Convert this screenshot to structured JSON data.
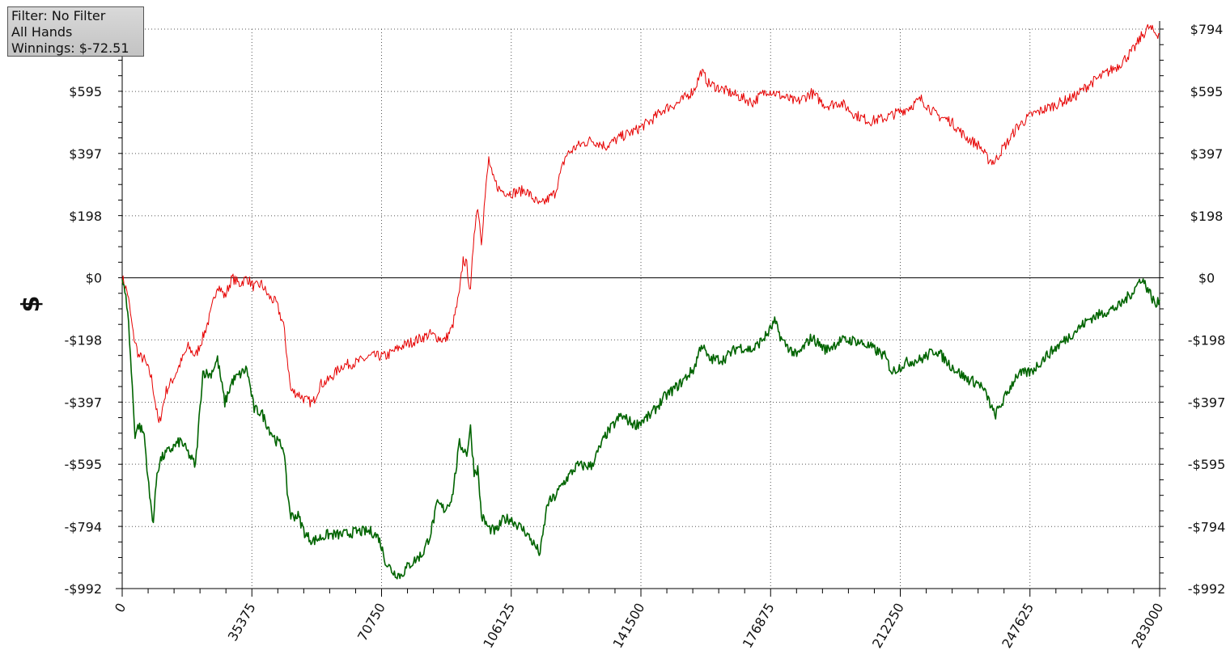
{
  "info_box": {
    "filter": "Filter: No Filter",
    "hands": "All Hands",
    "winnings": "Winnings: $-72.51"
  },
  "chart_data": {
    "type": "line",
    "title": "",
    "xlabel": "",
    "ylabel": "$",
    "xlim": [
      0,
      283000
    ],
    "ylim": [
      -992,
      794
    ],
    "x_ticks": [
      0,
      35375,
      70750,
      106125,
      141500,
      176875,
      212250,
      247625,
      283000
    ],
    "x_tick_labels": [
      "0",
      "35375",
      "70750",
      "106125",
      "141500",
      "176875",
      "212250",
      "247625",
      "283000"
    ],
    "y_ticks": [
      794,
      595,
      397,
      198,
      0,
      -198,
      -397,
      -595,
      -794,
      -992
    ],
    "y_tick_labels": [
      "$794",
      "$595",
      "$397",
      "$198",
      "$0",
      "-$198",
      "-$397",
      "-$595",
      "-$794",
      "-$992"
    ],
    "grid": true,
    "colors": {
      "red_series": "#e60000",
      "green_series": "#006400",
      "zero_line": "#000000",
      "grid": "#555555"
    },
    "series": [
      {
        "color": "#e60000",
        "x": [
          0,
          1500,
          3000,
          4500,
          6000,
          8000,
          10000,
          12000,
          14000,
          16000,
          18000,
          20000,
          22000,
          24000,
          26000,
          28000,
          30000,
          32000,
          34000,
          36000,
          38000,
          40000,
          42000,
          44000,
          46000,
          48000,
          50000,
          52000,
          54000,
          56000,
          60000,
          64000,
          68000,
          72000,
          76000,
          80000,
          84000,
          88000,
          90000,
          92000,
          93000,
          94000,
          95000,
          96000,
          97000,
          98000,
          99000,
          100000,
          101000,
          103000,
          106000,
          110000,
          114000,
          118000,
          121000,
          124000,
          128000,
          132000,
          136000,
          140000,
          144000,
          148000,
          152000,
          156000,
          158000,
          160000,
          164000,
          168000,
          172000,
          176000,
          180000,
          184000,
          188000,
          192000,
          196000,
          200000,
          204000,
          208000,
          210000,
          214000,
          218000,
          222000,
          226000,
          230000,
          234000,
          236000,
          238000,
          240000,
          242000,
          244000,
          248000,
          252000,
          256000,
          260000,
          264000,
          268000,
          272000,
          276000,
          278000,
          280000,
          282000,
          283000
        ],
        "y": [
          0,
          -50,
          -180,
          -250,
          -260,
          -320,
          -470,
          -360,
          -320,
          -270,
          -220,
          -250,
          -190,
          -120,
          -20,
          -60,
          0,
          -20,
          0,
          -30,
          -20,
          -60,
          -80,
          -150,
          -360,
          -370,
          -390,
          -400,
          -340,
          -330,
          -280,
          -270,
          -250,
          -250,
          -220,
          -200,
          -180,
          -200,
          -160,
          -50,
          60,
          40,
          -50,
          150,
          230,
          120,
          260,
          380,
          320,
          280,
          270,
          280,
          230,
          270,
          390,
          420,
          440,
          420,
          450,
          470,
          500,
          540,
          560,
          600,
          660,
          620,
          600,
          580,
          560,
          600,
          580,
          560,
          590,
          550,
          560,
          520,
          500,
          510,
          520,
          540,
          570,
          520,
          500,
          450,
          420,
          380,
          370,
          410,
          440,
          480,
          520,
          540,
          560,
          580,
          620,
          650,
          680,
          730,
          770,
          800,
          780,
          780
        ]
      },
      {
        "color": "#006400",
        "x": [
          0,
          1500,
          2500,
          3500,
          4500,
          6000,
          7500,
          8500,
          9500,
          10500,
          12000,
          14000,
          16000,
          18000,
          20000,
          22000,
          24000,
          26000,
          28000,
          30000,
          32000,
          34000,
          36000,
          38000,
          40000,
          42000,
          44000,
          45000,
          46000,
          48000,
          50000,
          52000,
          54000,
          56000,
          60000,
          64000,
          68000,
          70000,
          72000,
          74000,
          76000,
          78000,
          80000,
          82000,
          84000,
          86000,
          88000,
          90000,
          92000,
          94000,
          95000,
          96000,
          97000,
          98000,
          100000,
          102000,
          104000,
          106000,
          110000,
          114000,
          116000,
          118000,
          120000,
          124000,
          128000,
          132000,
          136000,
          140000,
          144000,
          148000,
          152000,
          156000,
          158000,
          160000,
          164000,
          168000,
          172000,
          176000,
          178000,
          180000,
          184000,
          188000,
          192000,
          196000,
          200000,
          204000,
          208000,
          210000,
          214000,
          218000,
          222000,
          226000,
          230000,
          234000,
          236000,
          238000,
          240000,
          244000,
          248000,
          252000,
          256000,
          260000,
          264000,
          268000,
          272000,
          276000,
          278000,
          280000,
          282000,
          283000
        ],
        "y": [
          0,
          -100,
          -300,
          -500,
          -470,
          -500,
          -700,
          -780,
          -620,
          -580,
          -560,
          -540,
          -520,
          -560,
          -600,
          -300,
          -310,
          -260,
          -400,
          -330,
          -310,
          -290,
          -420,
          -430,
          -480,
          -520,
          -540,
          -680,
          -760,
          -760,
          -820,
          -840,
          -830,
          -820,
          -820,
          -810,
          -810,
          -830,
          -910,
          -940,
          -950,
          -920,
          -900,
          -880,
          -820,
          -720,
          -740,
          -700,
          -530,
          -560,
          -480,
          -620,
          -610,
          -760,
          -800,
          -810,
          -770,
          -770,
          -810,
          -880,
          -720,
          -700,
          -660,
          -600,
          -600,
          -500,
          -440,
          -470,
          -440,
          -380,
          -340,
          -290,
          -210,
          -260,
          -260,
          -220,
          -230,
          -180,
          -140,
          -200,
          -250,
          -190,
          -230,
          -200,
          -200,
          -220,
          -250,
          -300,
          -270,
          -260,
          -230,
          -280,
          -320,
          -340,
          -380,
          -440,
          -400,
          -310,
          -300,
          -250,
          -210,
          -170,
          -130,
          -110,
          -90,
          -40,
          0,
          -40,
          -90,
          -70
        ]
      }
    ]
  }
}
